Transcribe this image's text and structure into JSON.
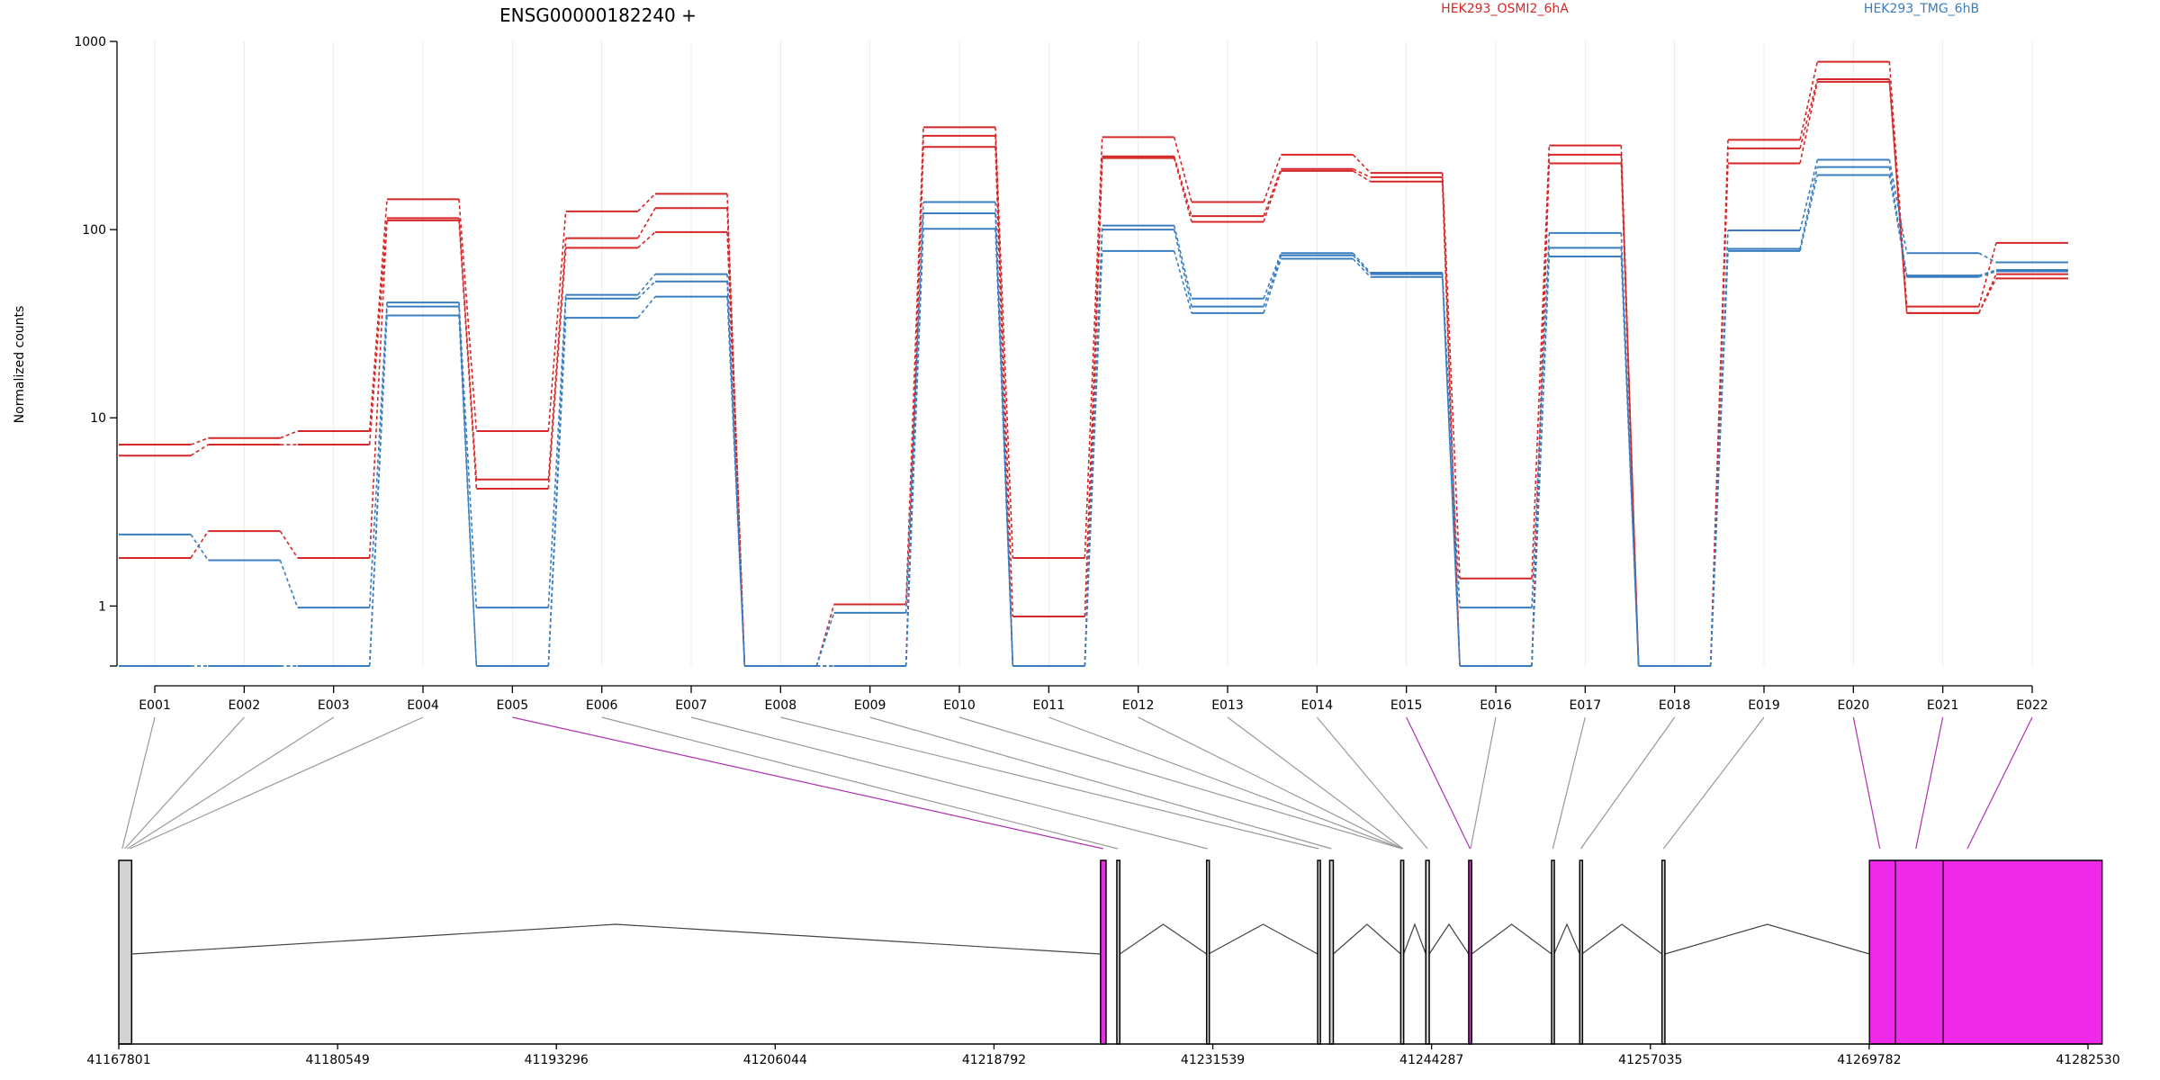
{
  "chart_data": [
    {
      "type": "line",
      "title": "ENSG00000182240 +",
      "ylabel": "Normalized counts",
      "yscale": "log",
      "ylim": [
        0.48,
        1000
      ],
      "yticks": [
        1,
        10,
        100,
        1000
      ],
      "yticklabels": [
        "1",
        "10",
        "100",
        "1000"
      ],
      "categories": [
        "E001",
        "E002",
        "E003",
        "E004",
        "E005",
        "E006",
        "E007",
        "E008",
        "E009",
        "E010",
        "E011",
        "E012",
        "E013",
        "E014",
        "E015",
        "E016",
        "E017",
        "E018",
        "E019",
        "E020",
        "E021",
        "E022"
      ],
      "legend": [
        {
          "label": "HEK293_OSMI2_6hA",
          "color": "#d62728"
        },
        {
          "label": "HEK293_TMG_6hB",
          "color": "#3a7dbf"
        }
      ],
      "series": [
        {
          "group": "HEK293_OSMI2_6hA",
          "color": "#d62728",
          "values": [
            7.2,
            7.8,
            8.5,
            145,
            8.5,
            125,
            155,
            0.48,
            1.02,
            350,
            1.8,
            310,
            140,
            250,
            200,
            1.4,
            280,
            0.48,
            300,
            780,
            39,
            85
          ]
        },
        {
          "group": "HEK293_OSMI2_6hA",
          "color": "#d62728",
          "values": [
            6.3,
            7.2,
            7.2,
            115,
            4.7,
            90,
            130,
            0.48,
            0.48,
            315,
            0.88,
            245,
            118,
            210,
            190,
            0.48,
            250,
            0.48,
            270,
            630,
            36,
            58
          ]
        },
        {
          "group": "HEK293_OSMI2_6hA",
          "color": "#d62728",
          "values": [
            1.8,
            2.5,
            1.8,
            112,
            4.2,
            80,
            97,
            0.48,
            0.48,
            275,
            0.48,
            240,
            110,
            205,
            180,
            0.48,
            225,
            0.48,
            225,
            610,
            36,
            55
          ]
        },
        {
          "group": "HEK293_TMG_6hB",
          "color": "#3a7dbf",
          "values": [
            2.4,
            1.75,
            0.98,
            41,
            0.98,
            45,
            58,
            0.48,
            0.92,
            140,
            0.48,
            105,
            43,
            75,
            59,
            0.98,
            96,
            0.48,
            99,
            235,
            75,
            67
          ]
        },
        {
          "group": "HEK293_TMG_6hB",
          "color": "#3a7dbf",
          "values": [
            0.48,
            0.48,
            0.48,
            39,
            0.48,
            43,
            53,
            0.48,
            0.48,
            122,
            0.48,
            100,
            39,
            73,
            58,
            0.48,
            80,
            0.48,
            79,
            215,
            57,
            61
          ]
        },
        {
          "group": "HEK293_TMG_6hB",
          "color": "#3a7dbf",
          "values": [
            0.48,
            0.48,
            0.48,
            35,
            0.48,
            34,
            44,
            0.48,
            0.48,
            101,
            0.48,
            77,
            36,
            70,
            56,
            0.48,
            72,
            0.48,
            77,
            195,
            56,
            60
          ]
        }
      ]
    },
    {
      "type": "gene-model",
      "xlim": [
        41167801,
        41282530
      ],
      "xticks": [
        41167801,
        41180549,
        41193296,
        41206044,
        41218792,
        41231539,
        41244287,
        41257035,
        41269782,
        41282530
      ],
      "xticklabels": [
        "41167801",
        "41180549",
        "41193296",
        "41206044",
        "41218792",
        "41231539",
        "41244287",
        "41257035",
        "41269782",
        "41282530"
      ],
      "exons": [
        {
          "start": 41167801,
          "end": 41168550,
          "color": "#d3d3d3"
        },
        {
          "start": 41225000,
          "end": 41225320,
          "color": "#ee2ae8"
        },
        {
          "start": 41225950,
          "end": 41226120,
          "color": "#d3d3d3"
        },
        {
          "start": 41231180,
          "end": 41231290,
          "color": "#d3d3d3"
        },
        {
          "start": 41237650,
          "end": 41237780,
          "color": "#d3d3d3"
        },
        {
          "start": 41238350,
          "end": 41238560,
          "color": "#d3d3d3"
        },
        {
          "start": 41242490,
          "end": 41242660,
          "color": "#d3d3d3"
        },
        {
          "start": 41243950,
          "end": 41244150,
          "color": "#d3d3d3"
        },
        {
          "start": 41246450,
          "end": 41246620,
          "color": "#ee2ae8"
        },
        {
          "start": 41251280,
          "end": 41251420,
          "color": "#d3d3d3"
        },
        {
          "start": 41252920,
          "end": 41253040,
          "color": "#d3d3d3"
        },
        {
          "start": 41257710,
          "end": 41257880,
          "color": "#d3d3d3"
        },
        {
          "start": 41269800,
          "end": 41283350,
          "color": "#ee2ae8"
        }
      ],
      "junctions": [
        [
          41168550,
          41225000
        ],
        [
          41226120,
          41231180
        ],
        [
          41231290,
          41237650
        ],
        [
          41238560,
          41242490
        ],
        [
          41242660,
          41243950
        ],
        [
          41244150,
          41246450
        ],
        [
          41246620,
          41251280
        ],
        [
          41251420,
          41252920
        ],
        [
          41253040,
          41257710
        ],
        [
          41257880,
          41269800
        ]
      ],
      "exon_links": [
        {
          "exon": "E001",
          "pos": 41168000,
          "color": "#999999"
        },
        {
          "exon": "E002",
          "pos": 41168150,
          "color": "#999999"
        },
        {
          "exon": "E003",
          "pos": 41168300,
          "color": "#999999"
        },
        {
          "exon": "E004",
          "pos": 41168450,
          "color": "#999999"
        },
        {
          "exon": "E005",
          "pos": 41225150,
          "color": "#b030b0"
        },
        {
          "exon": "E006",
          "pos": 41226000,
          "color": "#999999"
        },
        {
          "exon": "E007",
          "pos": 41231230,
          "color": "#999999"
        },
        {
          "exon": "E008",
          "pos": 41237700,
          "color": "#999999"
        },
        {
          "exon": "E009",
          "pos": 41238450,
          "color": "#999999"
        },
        {
          "exon": "E010",
          "pos": 41242560,
          "color": "#999999"
        },
        {
          "exon": "E011",
          "pos": 41242580,
          "color": "#999999"
        },
        {
          "exon": "E012",
          "pos": 41242600,
          "color": "#999999"
        },
        {
          "exon": "E013",
          "pos": 41242620,
          "color": "#999999"
        },
        {
          "exon": "E014",
          "pos": 41244050,
          "color": "#999999"
        },
        {
          "exon": "E015",
          "pos": 41246530,
          "color": "#b030b0"
        },
        {
          "exon": "E016",
          "pos": 41246560,
          "color": "#999999"
        },
        {
          "exon": "E017",
          "pos": 41251350,
          "color": "#999999"
        },
        {
          "exon": "E018",
          "pos": 41252980,
          "color": "#999999"
        },
        {
          "exon": "E019",
          "pos": 41257800,
          "color": "#999999"
        },
        {
          "exon": "E020",
          "pos": 41270400,
          "color": "#b030b0"
        },
        {
          "exon": "E021",
          "pos": 41272500,
          "color": "#b030b0"
        },
        {
          "exon": "E022",
          "pos": 41275500,
          "color": "#b030b0"
        }
      ]
    }
  ]
}
